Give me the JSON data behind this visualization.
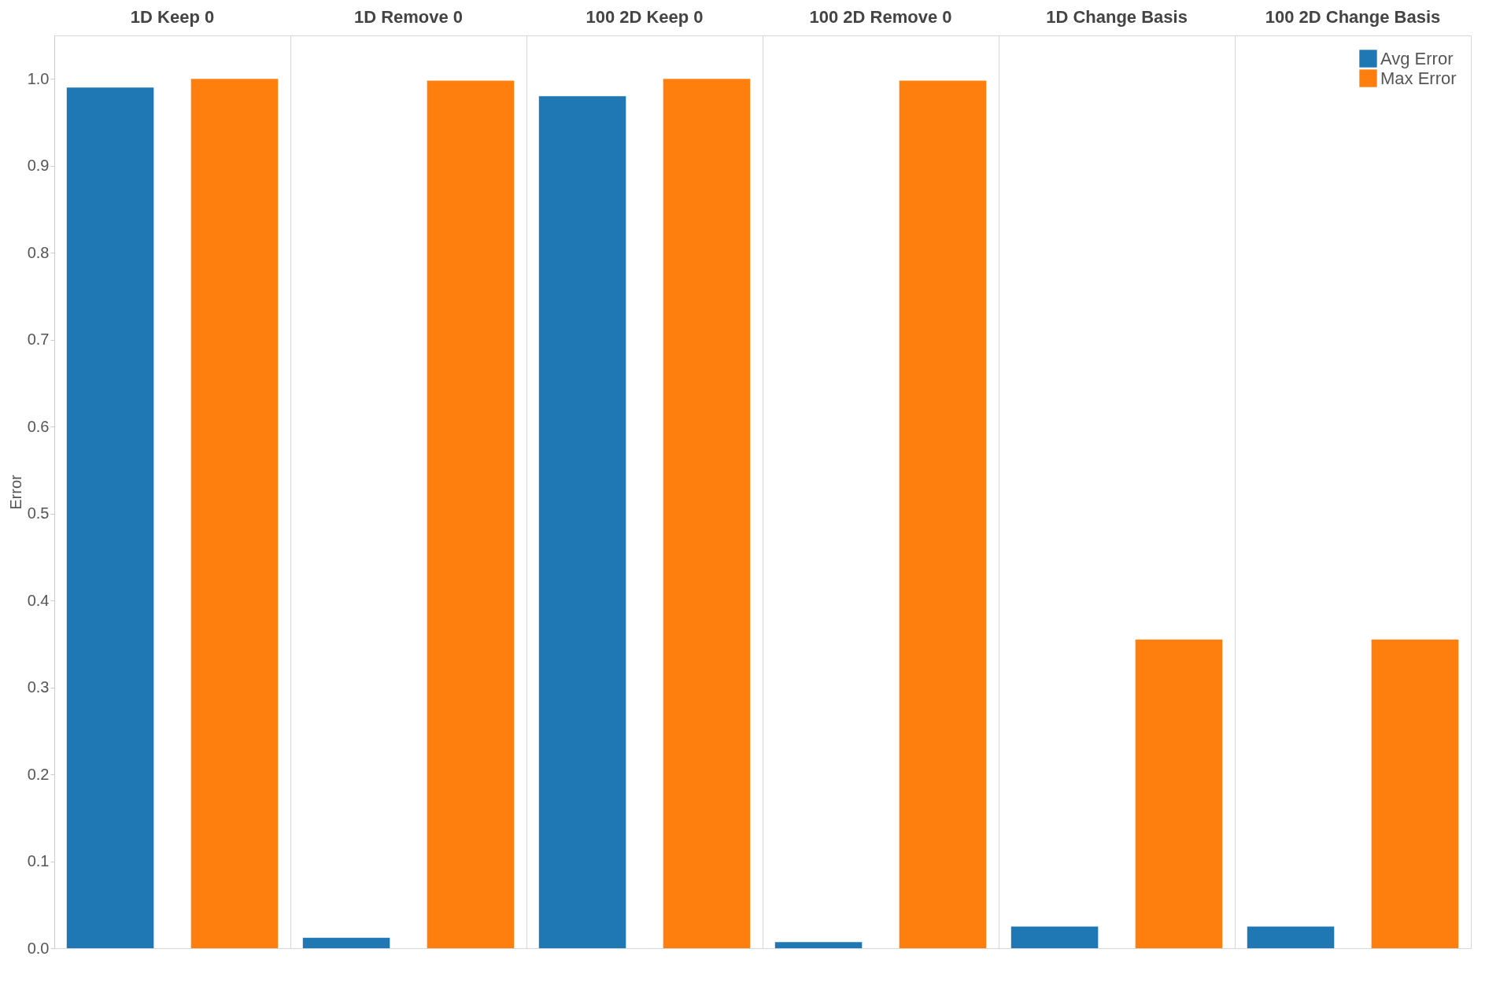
{
  "chart_data": {
    "type": "bar",
    "ylabel": "Error",
    "categories": [
      "1D Keep 0",
      "1D Remove 0",
      "100 2D Keep 0",
      "100 2D Remove 0",
      "1D Change Basis",
      "100 2D Change Basis"
    ],
    "series": [
      {
        "name": "Avg Error",
        "color": "#1f77b4",
        "values": [
          0.99,
          0.012,
          0.98,
          0.007,
          0.025,
          0.025
        ]
      },
      {
        "name": "Max Error",
        "color": "#ff7f0e",
        "values": [
          1.0,
          0.998,
          1.0,
          0.998,
          0.355,
          0.355
        ]
      }
    ],
    "ylim": [
      0,
      1.05
    ],
    "yticks": [
      {
        "value": 0,
        "label": "0.0"
      },
      {
        "value": 0.1,
        "label": "0.1"
      },
      {
        "value": 0.2,
        "label": "0.2"
      },
      {
        "value": 0.3,
        "label": "0.3"
      },
      {
        "value": 0.4,
        "label": "0.4"
      },
      {
        "value": 0.5,
        "label": "0.5"
      },
      {
        "value": 0.6,
        "label": "0.6"
      },
      {
        "value": 0.7,
        "label": "0.7"
      },
      {
        "value": 0.8,
        "label": "0.8"
      },
      {
        "value": 0.9,
        "label": "0.9"
      },
      {
        "value": 1,
        "label": "1.0"
      }
    ],
    "grid": "x",
    "legend": "top right"
  }
}
